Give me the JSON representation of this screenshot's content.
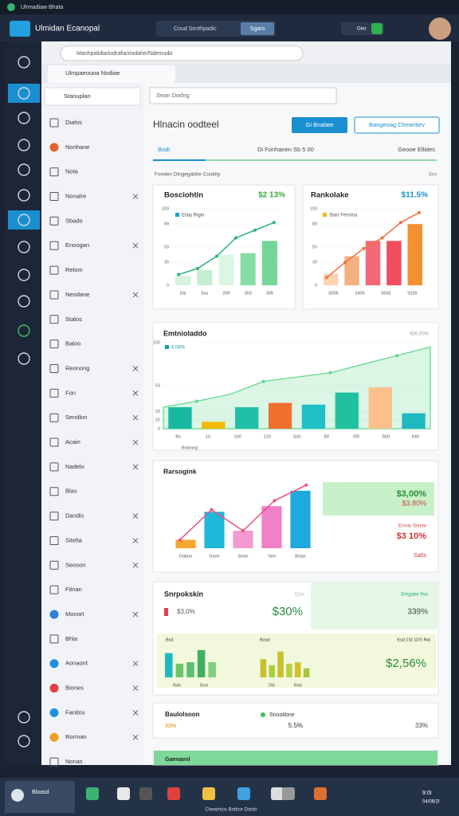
{
  "window": {
    "title": "Ulrmadiaw Bhata",
    "app_name": "Ulmidan Ecanopal",
    "search": "Coud Senthpadic",
    "search_button": "Sgaro",
    "status": "Geo"
  },
  "browser": {
    "url": "Manhpalidia/iodrafia/riodahe/Ndemudo",
    "tab": "Ulmpaeouoa Nodiae"
  },
  "sidebar": {
    "search": "Stanuplan",
    "items": [
      {
        "label": "Diahis",
        "closable": false
      },
      {
        "label": "Nonhane",
        "closable": false,
        "color": "#e8602c"
      },
      {
        "label": "Nota",
        "closable": false
      },
      {
        "label": "Nonalre",
        "closable": true
      },
      {
        "label": "Sbado",
        "closable": false
      },
      {
        "label": "Enoogan",
        "closable": true
      },
      {
        "label": "Relom",
        "closable": false
      },
      {
        "label": "Neodane",
        "closable": true
      },
      {
        "label": "Stalos",
        "closable": false
      },
      {
        "label": "Baloo",
        "closable": false
      },
      {
        "label": "Reonong",
        "closable": true
      },
      {
        "label": "Fon",
        "closable": true
      },
      {
        "label": "Sendlon",
        "closable": true
      },
      {
        "label": "Acain",
        "closable": true
      },
      {
        "label": "Nadelo",
        "closable": true
      },
      {
        "label": "Blas",
        "closable": false
      },
      {
        "label": "Dandis",
        "closable": true
      },
      {
        "label": "Sitelta",
        "closable": true
      },
      {
        "label": "Seoson",
        "closable": true
      },
      {
        "label": "Fitnan",
        "closable": false
      },
      {
        "label": "Monort",
        "closable": true,
        "color": "#2f7fd6"
      },
      {
        "label": "Bhla",
        "closable": false
      },
      {
        "label": "Aonaont",
        "closable": true,
        "color": "#1e90e0"
      },
      {
        "label": "Biones",
        "closable": true,
        "color": "#e04040"
      },
      {
        "label": "Fanitos",
        "closable": true,
        "color": "#1e90e0"
      },
      {
        "label": "Rorman",
        "closable": true,
        "color": "#f0a020"
      },
      {
        "label": "Nonas",
        "closable": false
      }
    ]
  },
  "main": {
    "search": "Sean Dodng",
    "heading": "Hlnacin oodteel",
    "button_primary": "Gi Bnalate",
    "button_secondary": "Bangeoag Chearitiev",
    "tabs": [
      "Bodi",
      "Di Fonhanen Sb 5 00",
      "Geooe Ellides"
    ],
    "section": "Fonden Dingegabhe Cookity",
    "section_value": "3ss"
  },
  "cards": [
    {
      "labels": [
        "Bosciohtin",
        "$2 13%",
        "Elaiy Rigin"
      ],
      "charts": [
        {
          "ylim": [
            0,
            100
          ],
          "yticks": [
            0,
            30,
            50,
            80,
            100
          ],
          "x_labels": [
            "Dis",
            "5as",
            "200",
            "303",
            "305"
          ],
          "bars": [
            12,
            20,
            40,
            42,
            58
          ],
          "bar_colors": [
            "#d4f2dc",
            "#c4eed2",
            "#dcf6e4",
            "#86dca6",
            "#74d696"
          ],
          "line": [
            14,
            22,
            38,
            62,
            72,
            82
          ],
          "line_color": "#2bb07f"
        }
      ]
    },
    {
      "labels": [
        "Rankolake",
        "$11.5%",
        "Bais Fenslsa"
      ],
      "charts": [
        {
          "ylim": [
            0,
            100
          ],
          "yticks": [
            0,
            30,
            50,
            80,
            100
          ],
          "x_labels": [
            "5005",
            "2400",
            "5555",
            "5255"
          ],
          "bars": [
            15,
            38,
            58,
            58,
            80
          ],
          "bar_colors": [
            "#fbd4b0",
            "#f6b080",
            "#f4687a",
            "#ee4e5e",
            "#f59030"
          ],
          "line": [
            10,
            30,
            48,
            62,
            82,
            95
          ],
          "line_color": "#f07040"
        }
      ]
    },
    {
      "labels": [
        "Emtnioladdo",
        "5.08%",
        "$30.00%",
        "Bnionng"
      ],
      "charts": [
        {
          "ylim": [
            0,
            100
          ],
          "yticks": [
            0,
            10,
            20,
            50,
            100
          ],
          "x_labels": [
            "Bs",
            "10",
            "100",
            "120",
            "5s0",
            "80",
            "f30",
            "S50",
            "540"
          ],
          "bars": [
            25,
            8,
            25,
            30,
            28,
            42,
            48,
            18
          ],
          "bar_colors": [
            "#18b8a0",
            "#f5b800",
            "#20c0a8",
            "#f07030",
            "#20c0c8",
            "#20c0a0",
            "#fbc08a",
            "#20b8c0"
          ],
          "area": [
            25,
            32,
            40,
            55,
            60,
            65,
            75,
            85,
            95
          ],
          "line_color": "#5ad88a"
        }
      ]
    },
    {
      "labels": [
        "Rarsogink",
        "$3,00%",
        "$3.80%",
        "Ensiio Siento",
        "$3 10%",
        "Sa0s"
      ],
      "charts": [
        {
          "ylim": [
            0,
            100
          ],
          "yticks": [],
          "x_labels": [
            "Daboo",
            "Dane",
            "Sedo",
            "Sen",
            "Bsias"
          ],
          "bars": [
            12,
            52,
            25,
            60,
            82
          ],
          "bar_colors": [
            "#f5a830",
            "#20b8d8",
            "#f59ad0",
            "#f080c8",
            "#20a8e0"
          ],
          "line": [
            12,
            55,
            25,
            68,
            90
          ],
          "line_color": "#f05080"
        }
      ]
    },
    {
      "labels": [
        "Snrpokskin",
        "Ebio",
        "Emgabe 9se",
        "$3,0%",
        "$30%",
        "339%",
        "Bsd",
        "Bosd",
        "Esd 1St 1DS Rat",
        "$2,56%"
      ],
      "charts": [
        {
          "ylim": [
            0,
            100
          ],
          "yticks": [],
          "x_labels": [
            "Bab",
            "Bad"
          ],
          "bars": [
            80,
            45,
            50,
            90,
            50
          ],
          "bar_colors": [
            "#20b8c0",
            "#6ac86a",
            "#5ac070",
            "#40b060",
            "#80d080"
          ]
        },
        {
          "ylim": [
            0,
            100
          ],
          "yticks": [],
          "x_labels": [
            "Dib",
            "Bab"
          ],
          "bars": [
            60,
            40,
            85,
            45,
            50,
            30
          ],
          "bar_colors": [
            "#c8c030",
            "#a8d040",
            "#c8c030",
            "#b8d040",
            "#d0c030",
            "#a8c840"
          ]
        }
      ]
    },
    {
      "labels": [
        "Baulolsoon",
        "Snookbne",
        "33%",
        "5.5%",
        "33%"
      ],
      "charts": []
    },
    {
      "labels": [
        "Gaenaenl"
      ],
      "charts": []
    }
  ],
  "taskbar": {
    "start": "Bloasd",
    "tooltip": "Chearnlos Bnblce Dotob",
    "time": "9:0I",
    "date": "04/06/2I"
  }
}
